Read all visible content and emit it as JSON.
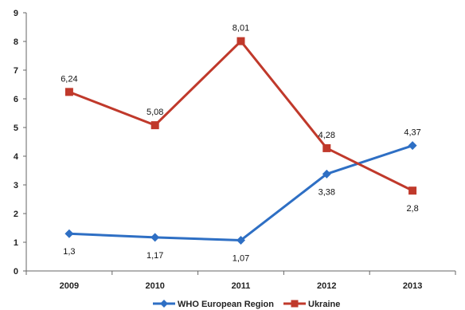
{
  "chart_data": {
    "type": "line",
    "title": "",
    "xlabel": "",
    "ylabel": "",
    "categories": [
      "2009",
      "2010",
      "2011",
      "2012",
      "2013"
    ],
    "ylim": [
      0,
      9
    ],
    "yticks": [
      0,
      1,
      2,
      3,
      4,
      5,
      6,
      7,
      8,
      9
    ],
    "grid": false,
    "legend_position": "bottom",
    "series": [
      {
        "name": "WHO European Region",
        "color": "#2e6fc4",
        "marker": "diamond",
        "values": [
          1.3,
          1.17,
          1.07,
          3.38,
          4.37
        ],
        "labels": [
          "1,3",
          "1,17",
          "1,07",
          "3,38",
          "4,37"
        ],
        "label_placement": [
          "below",
          "below",
          "below",
          "below",
          "above"
        ]
      },
      {
        "name": "Ukraine",
        "color": "#c0392b",
        "marker": "square",
        "values": [
          6.24,
          5.08,
          8.01,
          4.28,
          2.8
        ],
        "labels": [
          "6,24",
          "5,08",
          "8,01",
          "4,28",
          "2,8"
        ],
        "label_placement": [
          "above",
          "above",
          "above",
          "above",
          "below"
        ]
      }
    ]
  }
}
